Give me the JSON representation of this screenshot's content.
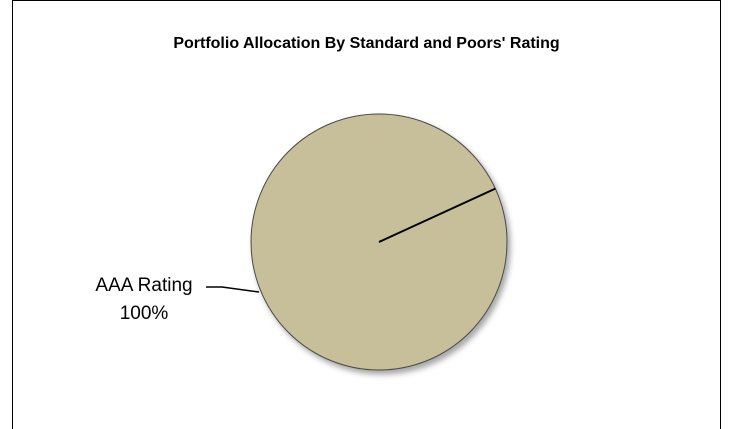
{
  "chart_data": {
    "type": "pie",
    "title": "Portfolio Allocation By  Standard and Poors' Rating",
    "categories": [
      "AAA Rating"
    ],
    "values": [
      100
    ],
    "data_labels": [
      {
        "category": "AAA Rating",
        "percent": "100%"
      }
    ],
    "legend": "none",
    "colors": {
      "slice": "#c6bf9a",
      "outline": "#4a4a4a",
      "leader": "#000000"
    }
  }
}
